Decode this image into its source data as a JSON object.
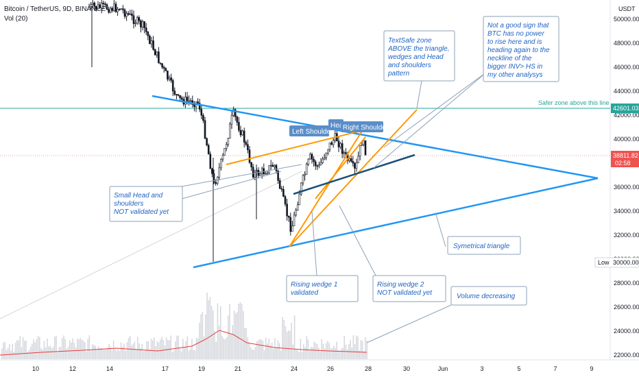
{
  "header": {
    "symbol": "Bitcoin / TetherUS, 9D, BINANCE",
    "volume_label": "Vol (20)"
  },
  "chart_data": {
    "type": "candlestick",
    "currency_label": "USDT",
    "y_ticks": [
      "50000.00",
      "48000.00",
      "46000.00",
      "44000.00",
      "42000.00",
      "40000.00",
      "38000.00",
      "36000.00",
      "34000.00",
      "32000.00",
      "30000.00",
      "28000.00",
      "26000.00",
      "24000.00",
      "22000.00"
    ],
    "x_ticks": [
      "10",
      "12",
      "14",
      "17",
      "19",
      "21",
      "24",
      "26",
      "28",
      "30",
      "Jun",
      "3",
      "5",
      "7",
      "9"
    ],
    "price_badges": [
      {
        "label": "42601.03",
        "color": "#26a69a"
      },
      {
        "label": "38811.82",
        "color": "#ef5350"
      },
      {
        "label": "02:58",
        "color": "#ef5350"
      }
    ],
    "low_label": "Low",
    "low_value": "30000.00",
    "hline_label": "Safer zone above this line",
    "pattern_tags": [
      "Left Shoulder",
      "Hea",
      "Right Shoulder"
    ],
    "notes": [
      {
        "lines": [
          "TextSafe zone",
          "ABOVE the triangle,",
          "wedges and Head",
          "and shoulders",
          "pattern"
        ]
      },
      {
        "lines": [
          "Not a good sign that",
          "BTC has no power",
          "to rise here and is",
          "heading again to the",
          "neckline of the",
          "bigger INV> HS in",
          "my other analysys"
        ]
      },
      {
        "lines": [
          "Small Head and",
          "shoulders",
          "NOT validated yet"
        ]
      },
      {
        "lines": [
          "Symetrical triangle"
        ]
      },
      {
        "lines": [
          "Rising wedge 1",
          "validated"
        ]
      },
      {
        "lines": [
          "Rising wedge 2",
          "NOT validated yet"
        ]
      },
      {
        "lines": [
          "Volume decreasing"
        ]
      }
    ]
  },
  "colors": {
    "triangle": "#2196f3",
    "wedge": "#ff9800",
    "neckline": "#1a4f7a",
    "safe_line": "#26a69a",
    "note_text": "#1e63c4",
    "volume_ma": "#e53935",
    "candle": "#131722"
  }
}
